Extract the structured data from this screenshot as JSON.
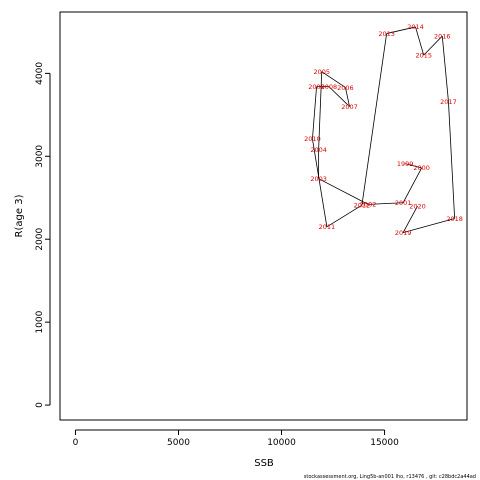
{
  "chart_data": {
    "type": "line",
    "xlabel": "SSB",
    "ylabel": "R(age 3)",
    "xlim": [
      -750,
      19000
    ],
    "ylim": [
      -180,
      4740
    ],
    "x_ticks": [
      0,
      5000,
      10000,
      15000
    ],
    "y_ticks": [
      0,
      1000,
      2000,
      3000,
      4000
    ],
    "grid": false,
    "connected_in_year_order": true,
    "series": [
      {
        "color": "#e00000",
        "points": [
          {
            "year": "1999",
            "x": 16000,
            "y": 2910
          },
          {
            "year": "2000",
            "x": 16800,
            "y": 2860
          },
          {
            "year": "2001",
            "x": 15900,
            "y": 2440
          },
          {
            "year": "2002",
            "x": 14200,
            "y": 2420
          },
          {
            "year": "2003",
            "x": 11800,
            "y": 2730
          },
          {
            "year": "2004",
            "x": 11800,
            "y": 3080
          },
          {
            "year": "2005",
            "x": 11950,
            "y": 4020
          },
          {
            "year": "2006",
            "x": 13100,
            "y": 3830
          },
          {
            "year": "2007",
            "x": 13300,
            "y": 3600
          },
          {
            "year": "2008",
            "x": 12300,
            "y": 3840
          },
          {
            "year": "2009",
            "x": 11700,
            "y": 3840
          },
          {
            "year": "2010",
            "x": 11500,
            "y": 3210
          },
          {
            "year": "2011",
            "x": 12200,
            "y": 2150
          },
          {
            "year": "2012",
            "x": 13900,
            "y": 2410
          },
          {
            "year": "2013",
            "x": 15100,
            "y": 4480
          },
          {
            "year": "2014",
            "x": 16500,
            "y": 4560
          },
          {
            "year": "2015",
            "x": 16900,
            "y": 4220
          },
          {
            "year": "2016",
            "x": 17800,
            "y": 4450
          },
          {
            "year": "2017",
            "x": 18100,
            "y": 3660
          },
          {
            "year": "2018",
            "x": 18400,
            "y": 2250
          },
          {
            "year": "2019",
            "x": 15900,
            "y": 2080
          },
          {
            "year": "2020",
            "x": 16600,
            "y": 2400
          }
        ]
      }
    ]
  },
  "footer_text": "stockassessment.org, Ling5b-an001 lho, r13476 , git: c28bdc2a44ad"
}
